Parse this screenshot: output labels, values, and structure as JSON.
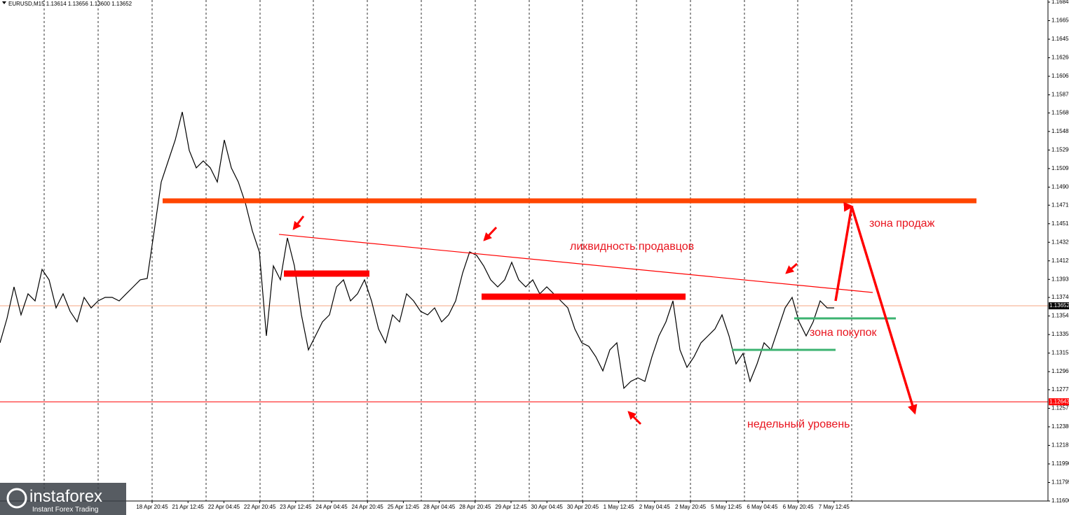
{
  "chart_data": {
    "type": "line",
    "title": "EURUSD,M15  1.13614 1.13656 1.13600 1.13652",
    "color": "#000000",
    "x": [
      0,
      1,
      2,
      3,
      4,
      5,
      6,
      7,
      8,
      9,
      10,
      11,
      12,
      13,
      14,
      15,
      16,
      17,
      18,
      19,
      20,
      21,
      22,
      23,
      24,
      25,
      26,
      27,
      28,
      29,
      30,
      31,
      32,
      33,
      34,
      35,
      36,
      37,
      38,
      39,
      40,
      41,
      42,
      43,
      44,
      45,
      46,
      47,
      48,
      49,
      50,
      51,
      52,
      53,
      54,
      55,
      56,
      57,
      58,
      59,
      60,
      61,
      62,
      63,
      64,
      65,
      66,
      67,
      68,
      69,
      70,
      71,
      72,
      73,
      74,
      75,
      76,
      77,
      78,
      79,
      80,
      81,
      82,
      83,
      84,
      85,
      86,
      87,
      88,
      89,
      90,
      91,
      92,
      93,
      94,
      95,
      96,
      97,
      98,
      99,
      100,
      101,
      102,
      103,
      104,
      105,
      106,
      107,
      108,
      109,
      110,
      111,
      112,
      113,
      114,
      115,
      116,
      117,
      118,
      119
    ],
    "values": [
      1.13263,
      1.1352,
      1.13851,
      1.13557,
      1.13778,
      1.13704,
      1.14035,
      1.13925,
      1.1363,
      1.13778,
      1.13594,
      1.13483,
      1.13741,
      1.1363,
      1.13704,
      1.13741,
      1.13741,
      1.13704,
      1.13778,
      1.13851,
      1.13925,
      1.13939,
      1.1444,
      1.14954,
      1.15175,
      1.15396,
      1.1569,
      1.15285,
      1.15102,
      1.15175,
      1.15102,
      1.14954,
      1.15396,
      1.15102,
      1.14954,
      1.14734,
      1.1444,
      1.14219,
      1.13336,
      1.14072,
      1.13925,
      1.14366,
      1.14072,
      1.13557,
      1.13189,
      1.13336,
      1.13483,
      1.13557,
      1.13851,
      1.13925,
      1.13704,
      1.13778,
      1.13925,
      1.13704,
      1.1341,
      1.13263,
      1.13557,
      1.13483,
      1.13778,
      1.13704,
      1.13594,
      1.13557,
      1.1363,
      1.13483,
      1.13557,
      1.13704,
      1.13998,
      1.14219,
      1.14182,
      1.14072,
      1.13925,
      1.13851,
      1.13925,
      1.14109,
      1.13925,
      1.13851,
      1.13925,
      1.13778,
      1.13851,
      1.13778,
      1.13704,
      1.1363,
      1.1341,
      1.13263,
      1.13226,
      1.13116,
      1.12968,
      1.13189,
      1.13263,
      1.12785,
      1.12858,
      1.12895,
      1.12858,
      1.13116,
      1.13336,
      1.13483,
      1.13704,
      1.13189,
      1.13005,
      1.13116,
      1.13263,
      1.13336,
      1.1341,
      1.13557,
      1.13336,
      1.13042,
      1.13152,
      1.12858,
      1.13042,
      1.13263,
      1.13189,
      1.1341,
      1.1363,
      1.13741,
      1.13483,
      1.13336,
      1.13483,
      1.13704,
      1.1363,
      1.1363
    ],
    "xlim": [
      0,
      149.5
    ],
    "ylim": [
      1.116,
      1.16845
    ],
    "xticks": [
      {
        "value": 21.7,
        "label": "18 Apr 20:45"
      },
      {
        "value": 26.82,
        "label": "21 Apr 12:45"
      },
      {
        "value": 31.94,
        "label": "22 Apr 04:45"
      },
      {
        "value": 37.06,
        "label": "22 Apr 20:45"
      },
      {
        "value": 42.18,
        "label": "23 Apr 12:45"
      },
      {
        "value": 47.3,
        "label": "24 Apr 04:45"
      },
      {
        "value": 52.42,
        "label": "24 Apr 20:45"
      },
      {
        "value": 57.54,
        "label": "25 Apr 12:45"
      },
      {
        "value": 62.66,
        "label": "28 Apr 04:45"
      },
      {
        "value": 67.78,
        "label": "28 Apr 20:45"
      },
      {
        "value": 72.9,
        "label": "29 Apr 12:45"
      },
      {
        "value": 78.02,
        "label": "30 Apr 04:45"
      },
      {
        "value": 83.14,
        "label": "30 Apr 20:45"
      },
      {
        "value": 88.26,
        "label": "1 May 12:45"
      },
      {
        "value": 93.38,
        "label": "2 May 04:45"
      },
      {
        "value": 98.5,
        "label": "2 May 20:45"
      },
      {
        "value": 103.62,
        "label": "5 May 12:45"
      },
      {
        "value": 108.74,
        "label": "6 May 04:45"
      },
      {
        "value": 113.86,
        "label": "6 May 20:45"
      },
      {
        "value": 118.98,
        "label": "7 May 12:45"
      }
    ],
    "xgrid": [
      6.3,
      14.0,
      21.7,
      29.4,
      37.1,
      44.7,
      52.4,
      60.1,
      67.8,
      75.5,
      83.1,
      90.8,
      98.5,
      106.2,
      113.8,
      121.5
    ],
    "yticks": [
      1.16845,
      {
        "value": 1.1665,
        "label": "1.16650"
      },
      1.16455,
      {
        "value": 1.1626,
        "label": "1.16260"
      },
      1.16065,
      {
        "value": 1.1587,
        "label": "1.15870"
      },
      {
        "value": 1.1568,
        "label": "1.15680"
      },
      1.15485,
      {
        "value": 1.1529,
        "label": "1.15290"
      },
      1.15095,
      {
        "value": 1.149,
        "label": "1.14900"
      },
      {
        "value": 1.1471,
        "label": "1.14710"
      },
      1.14515,
      {
        "value": 1.1432,
        "label": "1.14320"
      },
      1.14125,
      {
        "value": 1.1393,
        "label": "1.13930"
      },
      {
        "value": 1.1374,
        "label": "1.13740"
      },
      1.13545,
      {
        "value": 1.1335,
        "label": "1.13350"
      },
      1.13155,
      {
        "value": 1.1296,
        "label": "1.12960"
      },
      {
        "value": 1.1277,
        "label": "1.12770"
      },
      1.12575,
      {
        "value": 1.1238,
        "label": "1.12380"
      },
      1.12185,
      {
        "value": 1.1199,
        "label": "1.11990"
      },
      1.11795,
      {
        "value": 1.116,
        "label": "1.11600"
      }
    ],
    "price_lines": [
      {
        "value": 1.13652,
        "color": "#f4a582",
        "box": "#000000"
      },
      {
        "value": 1.12643,
        "color": "#ff0000",
        "box": "#ff0000"
      }
    ],
    "levels": [
      {
        "value": 1.14756,
        "x": [
          23.2,
          139.3
        ],
        "color": "#ff4500"
      },
      {
        "value": 1.13991,
        "x": [
          40.5,
          52.7
        ],
        "color": "#ff0000"
      },
      {
        "value": 1.13748,
        "x": [
          68.7,
          97.8
        ],
        "color": "#ff0000"
      },
      {
        "value": 1.1352,
        "x": [
          113.3,
          127.8
        ],
        "color": "#3cb371"
      },
      {
        "value": 1.13189,
        "x": [
          104.4,
          119.2
        ],
        "color": "#3cb371"
      }
    ],
    "trendline": {
      "x": [
        39.8,
        124.5
      ],
      "y": [
        1.14403,
        1.13792
      ],
      "color": "#ff0000"
    },
    "forecast": {
      "x": [
        119.2,
        121.5,
        130.5
      ],
      "y": [
        1.13704,
        1.14697,
        1.12527
      ],
      "color": "#ff0000"
    },
    "annotations": [
      "зона продаж",
      "ликвидность продавцов",
      "зона покупок",
      "недельный уровень"
    ],
    "watermark": {
      "title": "instaforex",
      "subtitle": "Instant Forex Trading"
    }
  }
}
